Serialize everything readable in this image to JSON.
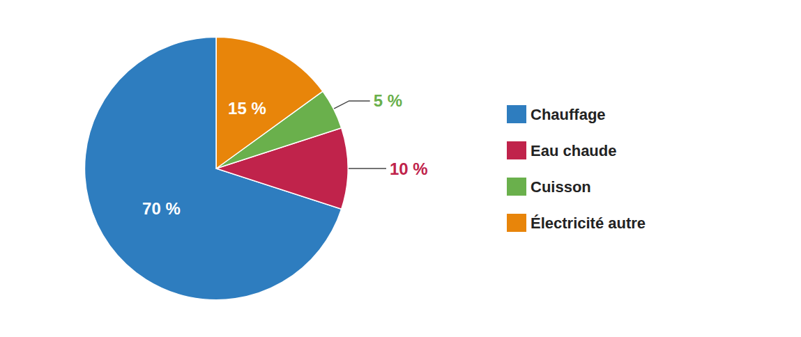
{
  "chart_data": {
    "type": "pie",
    "categories": [
      "Chauffage",
      "Eau chaude",
      "Cuisson",
      "Électricité autre"
    ],
    "values": [
      70,
      10,
      5,
      15
    ],
    "value_labels": [
      "70 %",
      "10 %",
      "5 %",
      "15 %"
    ],
    "colors": [
      "#2e7dbf",
      "#c0234b",
      "#6ab04c",
      "#e8850a"
    ],
    "data_labels": true,
    "legend": "right"
  }
}
